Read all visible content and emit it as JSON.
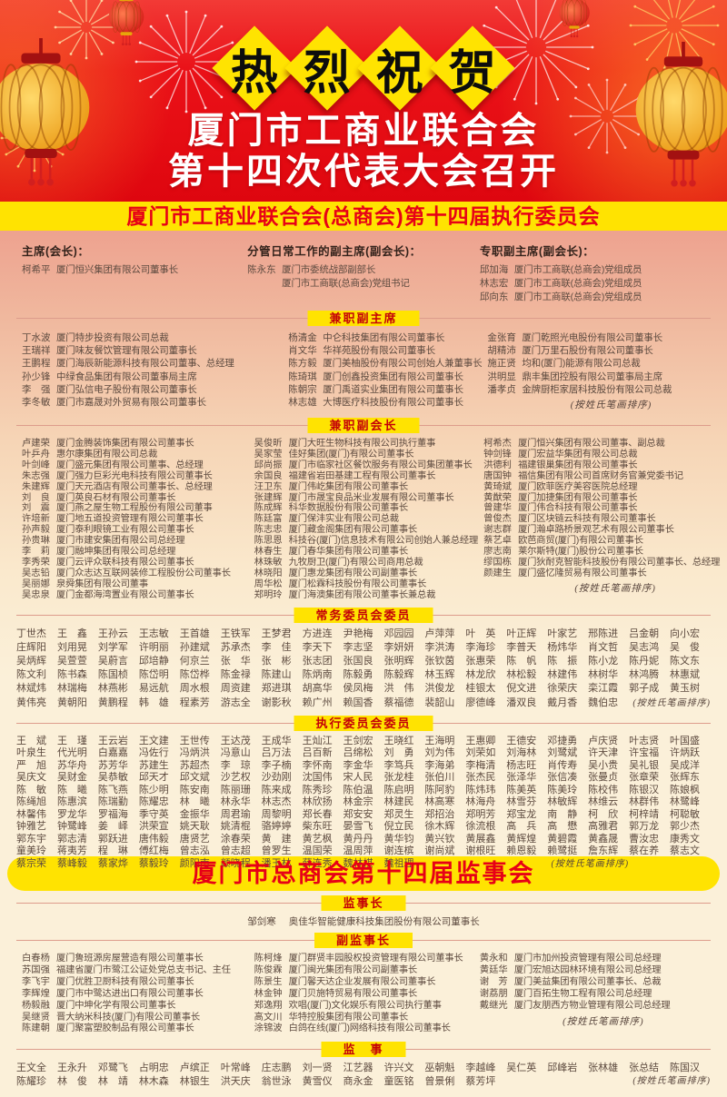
{
  "banner": {
    "congrats": "热烈祝贺",
    "title_line1": "厦门市工商业联合会",
    "title_line2": "第十四次代表大会召开",
    "strip": "厦门市工商业联合会(总商会)第十四届执行委员会"
  },
  "colors": {
    "header_red": "#e40b12",
    "yellow": "#ffe301",
    "banner_text_red": "#e70016",
    "pill_text_red": "#c40008",
    "name_ink": "#5d4a3f",
    "separator_line": "#dd9c8c",
    "lantern_gold": "#f3a81d"
  },
  "leaders": {
    "chairman": {
      "label": "主席(会长)：",
      "entries": [
        {
          "n": "柯希平",
          "d": "厦门恒兴集团有限公司董事长"
        }
      ]
    },
    "managing": {
      "label": "分管日常工作的副主席(副会长)：",
      "entries": [
        {
          "n": "陈永东",
          "d": "厦门市委统战部副部长"
        },
        {
          "n": "",
          "d": "厦门市工商联(总商会)党组书记"
        }
      ]
    },
    "fulltime": {
      "label": "专职副主席(副会长)：",
      "entries": [
        {
          "n": "邱加海",
          "d": "厦门市工商联(总商会)党组成员"
        },
        {
          "n": "林志宏",
          "d": "厦门市工商联(总商会)党组成员"
        },
        {
          "n": "邱向东",
          "d": "厦门市工商联(总商会)党组成员"
        }
      ]
    }
  },
  "sections": [
    {
      "pill": "兼职副主席",
      "note": "(按姓氏笔画排序)",
      "columns": [
        [
          {
            "n": "丁水波",
            "d": "厦门特步投资有限公司总裁"
          },
          {
            "n": "王瑞祥",
            "d": "厦门味友餐饮管理有限公司董事长"
          },
          {
            "n": "王鹏程",
            "d": "厦门海辰新能源科技有限公司董事、总经理"
          },
          {
            "n": "孙少锋",
            "d": "中绿食品集团有限公司董事局主席"
          },
          {
            "n": "李　强",
            "d": "厦门弘信电子股份有限公司董事长"
          },
          {
            "n": "李冬敏",
            "d": "厦门市嘉晟对外贸易有限公司董事长"
          }
        ],
        [
          {
            "n": "杨清金",
            "d": "中仑科技集团有限公司董事长"
          },
          {
            "n": "肖文华",
            "d": "华祥苑股份有限公司董事长"
          },
          {
            "n": "陈方毅",
            "d": "厦门美柚股份有限公司创始人兼董事长"
          },
          {
            "n": "陈琦琪",
            "d": "厦门创鑫投资集团有限公司董事长"
          },
          {
            "n": "陈朝宗",
            "d": "厦门禹道实业集团有限公司董事长"
          },
          {
            "n": "林志雄",
            "d": "大博医疗科技股份有限公司董事长"
          }
        ],
        [
          {
            "n": "金张育",
            "d": "厦门乾照光电股份有限公司董事长"
          },
          {
            "n": "胡精沛",
            "d": "厦门万里石股份有限公司董事长"
          },
          {
            "n": "施正贤",
            "d": "均和(厦门)能源有限公司总裁"
          },
          {
            "n": "洪明显",
            "d": "鼎丰集团控股有限公司董事局主席"
          },
          {
            "n": "潘孝贞",
            "d": "金牌厨柜家居科技股份有限公司总裁"
          }
        ]
      ]
    },
    {
      "pill": "兼职副会长",
      "note": "(按姓氏笔画排序)",
      "columns": [
        [
          {
            "n": "卢建荣",
            "d": "厦门金腾装饰集团有限公司董事长"
          },
          {
            "n": "叶乒舟",
            "d": "惠尔康集团有限公司总裁"
          },
          {
            "n": "叶剑峰",
            "d": "厦门盛元集团有限公司董事、总经理"
          },
          {
            "n": "朱志强",
            "d": "厦门强力巨彩光电科技有限公司董事长"
          },
          {
            "n": "朱建辉",
            "d": "厦门天元酒店有限公司董事长、总经理"
          },
          {
            "n": "刘　良",
            "d": "厦门英良石材有限公司董事长"
          },
          {
            "n": "刘　震",
            "d": "厦门燕之屋生物工程股份有限公司董事"
          },
          {
            "n": "许培新",
            "d": "厦门地五道投资管理有限公司董事长"
          },
          {
            "n": "孙声毅",
            "d": "厦门泰利眼镜工业有限公司董事长"
          },
          {
            "n": "孙贵琳",
            "d": "厦门市建安集团有限公司总经理"
          },
          {
            "n": "李　莉",
            "d": "厦门融坤集团有限公司总经理"
          },
          {
            "n": "李秀荣",
            "d": "厦门云评众联科技有限公司董事长"
          },
          {
            "n": "吴志铅",
            "d": "厦门众志达互联网装修工程股份公司董事长"
          },
          {
            "n": "吴丽娜",
            "d": "泉舜集团有限公司董事"
          },
          {
            "n": "吴忠泉",
            "d": "厦门金都海湾置业有限公司董事长"
          }
        ],
        [
          {
            "n": "吴俊昕",
            "d": "厦门大旺生物科技有限公司执行董事"
          },
          {
            "n": "吴家莹",
            "d": "佳好集团(厦门)有限公司董事长"
          },
          {
            "n": "邱尚振",
            "d": "厦门市临家社区餐饮服务有限公司集团董事长"
          },
          {
            "n": "余国良",
            "d": "福建省岩田基建工程有限公司董事长"
          },
          {
            "n": "汪卫东",
            "d": "厦门伟屹集团有限公司董事长"
          },
          {
            "n": "张建辉",
            "d": "厦门市晟宝良品米业发展有限公司董事长"
          },
          {
            "n": "陈成辉",
            "d": "科华数据股份有限公司董事长"
          },
          {
            "n": "陈廷富",
            "d": "厦门保沣实业有限公司总裁"
          },
          {
            "n": "陈志忠",
            "d": "厦门藏金阁集团有限公司董事长"
          },
          {
            "n": "陈思恩",
            "d": "科技谷(厦门)信息技术有限公司创始人兼总经理"
          },
          {
            "n": "林春生",
            "d": "厦门春华集团有限公司董事长"
          },
          {
            "n": "林珠敏",
            "d": "九牧厨卫(厦门)有限公司商用总裁"
          },
          {
            "n": "林晓阳",
            "d": "厦门惠龙集团有限公司副董事长"
          },
          {
            "n": "周华松",
            "d": "厦门松霖科技股份有限公司董事长"
          },
          {
            "n": "郑明玲",
            "d": "厦门海澳集团有限公司董事长兼总裁"
          }
        ],
        [
          {
            "n": "柯希杰",
            "d": "厦门恒兴集团有限公司董事、副总裁"
          },
          {
            "n": "钟剑锋",
            "d": "厦门宏益华集团有限公司总裁"
          },
          {
            "n": "洪德利",
            "d": "福建银巢集团有限公司董事长"
          },
          {
            "n": "唐国钟",
            "d": "福信集团有限公司首席财务官兼党委书记"
          },
          {
            "n": "黄琦斌",
            "d": "厦门欧菲医疗美容医院总经理"
          },
          {
            "n": "黄猷荣",
            "d": "厦门加捷集团有限公司董事长"
          },
          {
            "n": "曾建华",
            "d": "厦门伟合科技有限公司董事长"
          },
          {
            "n": "曾俊杰",
            "d": "厦门区块链云科技有限公司董事长"
          },
          {
            "n": "谢志群",
            "d": "厦门瀚卓路桥景观艺术有限公司董事长"
          },
          {
            "n": "蔡艺卓",
            "d": "欧芭商贸(厦门)有限公司董事长"
          },
          {
            "n": "廖志南",
            "d": "莱尔斯特(厦门)股份公司董事长"
          },
          {
            "n": "缪国栋",
            "d": "厦门狄耐克智能科技股份有限公司董事长、总经理"
          },
          {
            "n": "颜建生",
            "d": "厦门盛忆隆贸易有限公司董事长"
          }
        ]
      ]
    },
    {
      "pill": "常务委员会委员",
      "note": "(按姓氏笔画排序)",
      "note_col": {
        "start": 16,
        "span": 2
      },
      "rows": [
        [
          "丁世杰",
          "王　鑫",
          "王孙云",
          "王志敏",
          "王首雄",
          "王铁军",
          "王梦君",
          "方进连",
          "尹艳梅",
          "邓园园",
          "卢萍萍",
          "叶　英",
          "叶正辉",
          "叶家艺",
          "邢陈进",
          "吕金朝",
          "向小宏"
        ],
        [
          "庄辉阳",
          "刘用晃",
          "刘学军",
          "许明丽",
          "孙建斌",
          "苏承杰",
          "李　佳",
          "李天下",
          "李志坚",
          "李妍妍",
          "李洪涛",
          "李海珍",
          "李普天",
          "杨炜华",
          "肖文哲",
          "吴志鸿",
          "吴　俊"
        ],
        [
          "吴炳辉",
          "吴萱萱",
          "吴蔚言",
          "邱培静",
          "何京兰",
          "张　华",
          "张　彬",
          "张志团",
          "张国良",
          "张明辉",
          "张钦茵",
          "张惠荣",
          "陈　帆",
          "陈　振",
          "陈小龙",
          "陈丹妮",
          "陈文东"
        ],
        [
          "陈文利",
          "陈书森",
          "陈国桢",
          "陈岱明",
          "陈岱桦",
          "陈金禄",
          "陈建山",
          "陈炳南",
          "陈毅勇",
          "陈毅辉",
          "林玉辉",
          "林龙欣",
          "林松毅",
          "林建伟",
          "林树华",
          "林鸿腾",
          "林惠斌"
        ],
        [
          "林斌炜",
          "林瑞梅",
          "林燕彬",
          "易远航",
          "周水根",
          "周资建",
          "郑进琪",
          "胡高华",
          "侯凤梅",
          "洪　伟",
          "洪俊龙",
          "桂银太",
          "倪文进",
          "徐荣庆",
          "栾江霞",
          "郭子成",
          "黄玉树"
        ],
        [
          "黄伟亮",
          "黄朝阳",
          "黄鹏程",
          "韩　雄",
          "程素芳",
          "游志全",
          "谢影秋",
          "赖广州",
          "赖国香",
          "蔡福德",
          "裴韶山",
          "廖德峰",
          "潘双良",
          "戴月香",
          "魏伯忠"
        ]
      ]
    },
    {
      "pill": "执行委员会委员",
      "note": "(按姓氏笔画排序)",
      "note_col": {
        "start": 12,
        "span": 4
      },
      "rows": [
        [
          "王　斌",
          "王　瑾",
          "王云岩",
          "王文建",
          "王世传",
          "王达茂",
          "王成华",
          "王灿江",
          "王剑宏",
          "王晓红",
          "王海明",
          "王惠卿",
          "王德安",
          "邓捷勇",
          "卢庆贤",
          "叶志贤",
          "叶国盛"
        ],
        [
          "叶泉生",
          "代光明",
          "白嘉嘉",
          "冯佐行",
          "冯炳洪",
          "冯意山",
          "吕万法",
          "吕百新",
          "吕绵松",
          "刘　勇",
          "刘为伟",
          "刘荣如",
          "刘海林",
          "刘鹭斌",
          "许天津",
          "许宝福",
          "许炳跃"
        ],
        [
          "严　旭",
          "苏华舟",
          "苏芳华",
          "苏建生",
          "苏超杰",
          "李　琼",
          "李子楠",
          "李怀南",
          "李金华",
          "李笃兵",
          "李海弟",
          "李梅清",
          "杨志旺",
          "肖传寿",
          "吴小贵",
          "吴礼银",
          "吴成洋"
        ],
        [
          "吴庆文",
          "吴财金",
          "吴恭敏",
          "邱天才",
          "邱文斌",
          "沙艺权",
          "沙劲刚",
          "沈国伟",
          "宋人民",
          "张龙桂",
          "张伯川",
          "张杰民",
          "张泽华",
          "张信凑",
          "张曼贞",
          "张章荣",
          "张辉东"
        ],
        [
          "陈　敏",
          "陈　曦",
          "陈飞燕",
          "陈少明",
          "陈安南",
          "陈丽珊",
          "陈来成",
          "陈秀珍",
          "陈伯温",
          "陈启明",
          "陈阿豹",
          "陈炜玮",
          "陈美英",
          "陈美玲",
          "陈校伟",
          "陈银汉",
          "陈娘枫"
        ],
        [
          "陈绳旭",
          "陈惠滨",
          "陈瑞勤",
          "陈耀忠",
          "林　曦",
          "林永华",
          "林志杰",
          "林欣扬",
          "林金宗",
          "林建民",
          "林高寒",
          "林海舟",
          "林雪芬",
          "林敏辉",
          "林维云",
          "林群伟",
          "林鹭峰"
        ],
        [
          "林馨伟",
          "罗龙华",
          "罗福海",
          "季守英",
          "金振华",
          "周君瑜",
          "周黎明",
          "郑长春",
          "郑安安",
          "郑灵生",
          "郑招治",
          "郑明芳",
          "郑宝龙",
          "南　静",
          "柯　欣",
          "柯梓靖",
          "柯聪敏"
        ],
        [
          "钟雅艺",
          "钟鹭峰",
          "姜　峄",
          "洪荣宣",
          "姚天耿",
          "姚清棍",
          "骆婷婷",
          "柴东旺",
          "晏雪飞",
          "倪立民",
          "徐木辉",
          "徐流根",
          "高　兵",
          "高　懋",
          "高雅君",
          "郭万龙",
          "郭少杰"
        ],
        [
          "郭东宇",
          "郭志清",
          "郭跃进",
          "唐伟毅",
          "唐贤艺",
          "涂春荣",
          "黄　建",
          "黄艺枫",
          "黄丹丹",
          "黄华钧",
          "黄兴钦",
          "黄展鑫",
          "黄辉煌",
          "黄碧霞",
          "黄鑫晟",
          "曹汝忠",
          "康秀文"
        ],
        [
          "童美玲",
          "蒋夷芳",
          "程　琳",
          "傅红梅",
          "曾志泓",
          "曾志超",
          "曾罗生",
          "温国荣",
          "温周萍",
          "谢连槟",
          "谢尚斌",
          "谢根旺",
          "赖恩毅",
          "赖鹭挺",
          "詹东辉",
          "蔡在养",
          "蔡志文"
        ],
        [
          "蔡宗荣",
          "蔡峰毅",
          "蔡家烨",
          "蔡毅玲",
          "颜阳南",
          "颜晓程",
          "潘玉林",
          "薛连秀",
          "魏林棋",
          "魏祖理"
        ]
      ]
    }
  ],
  "supervisory": {
    "banner": "厦门市总商会第十四届监事会",
    "chief": {
      "pill": "监事长",
      "entries": [
        {
          "n": "邹剑寒",
          "d": "奥佳华智能健康科技集团股份有限公司董事长"
        }
      ]
    },
    "deputy": {
      "pill": "副监事长",
      "note": "(按姓氏笔画排序)",
      "columns": [
        [
          {
            "n": "白春杨",
            "d": "厦门鲁班源房屋营造有限公司董事长"
          },
          {
            "n": "苏国强",
            "d": "福建省厦门市鹭江公证处党总支书记、主任"
          },
          {
            "n": "李飞宇",
            "d": "厦门优胜卫厨科技有限公司董事长"
          },
          {
            "n": "李辉煌",
            "d": "厦门市中鹭达进出口有限公司董事长"
          },
          {
            "n": "杨毅融",
            "d": "厦门中坤化学有限公司董事长"
          },
          {
            "n": "吴继贤",
            "d": "晋大纳米科技(厦门)有限公司董事长"
          },
          {
            "n": "陈建朝",
            "d": "厦门聚富塑胶制品有限公司董事长"
          }
        ],
        [
          {
            "n": "陈柯烽",
            "d": "厦门群贤丰园股权投资管理有限公司董事长"
          },
          {
            "n": "陈俊霖",
            "d": "厦门闽光集团有限公司副董事长"
          },
          {
            "n": "陈景生",
            "d": "厦门馨天达企业发展有限公司董事长"
          },
          {
            "n": "林金钟",
            "d": "厦门贝施特贸易有限公司董事长"
          },
          {
            "n": "郑逸翔",
            "d": "欢唱(厦门)文化娱乐有限公司执行董事"
          },
          {
            "n": "高文川",
            "d": "华特控股集团有限公司董事长"
          },
          {
            "n": "涂锦波",
            "d": "白鸽在线(厦门)网络科技有限公司董事长"
          }
        ],
        [
          {
            "n": "黄永和",
            "d": "厦门市加州投资管理有限公司总经理"
          },
          {
            "n": "黄廷华",
            "d": "厦门宏旭达园林环境有限公司总经理"
          },
          {
            "n": "谢　芳",
            "d": "厦门美益集团有限公司董事长、总裁"
          },
          {
            "n": "谢荔朋",
            "d": "厦门百拓生物工程有限公司总经理"
          },
          {
            "n": "戴继光",
            "d": "厦门友朋西方物业管理有限公司总经理"
          }
        ]
      ]
    },
    "members": {
      "pill": "监　事",
      "note": "(按姓氏笔画排序)",
      "note_col": {
        "start": 14,
        "span": 4
      },
      "rows": [
        [
          "王文全",
          "王永升",
          "邓鹭飞",
          "占明忠",
          "卢缤正",
          "叶常峰",
          "庄志鹏",
          "刘一贤",
          "江艺器",
          "许兴文",
          "巫朝魁",
          "李越峰",
          "吴仁英",
          "邱峰岩",
          "张林雄",
          "张总结",
          "陈国汉"
        ],
        [
          "陈耀珍",
          "林　俊",
          "林　靖",
          "林木森",
          "林银生",
          "洪天庆",
          "翁世泳",
          "黄雪仪",
          "商永金",
          "童医铭",
          "曾景俐",
          "蔡芳坪"
        ]
      ]
    }
  }
}
